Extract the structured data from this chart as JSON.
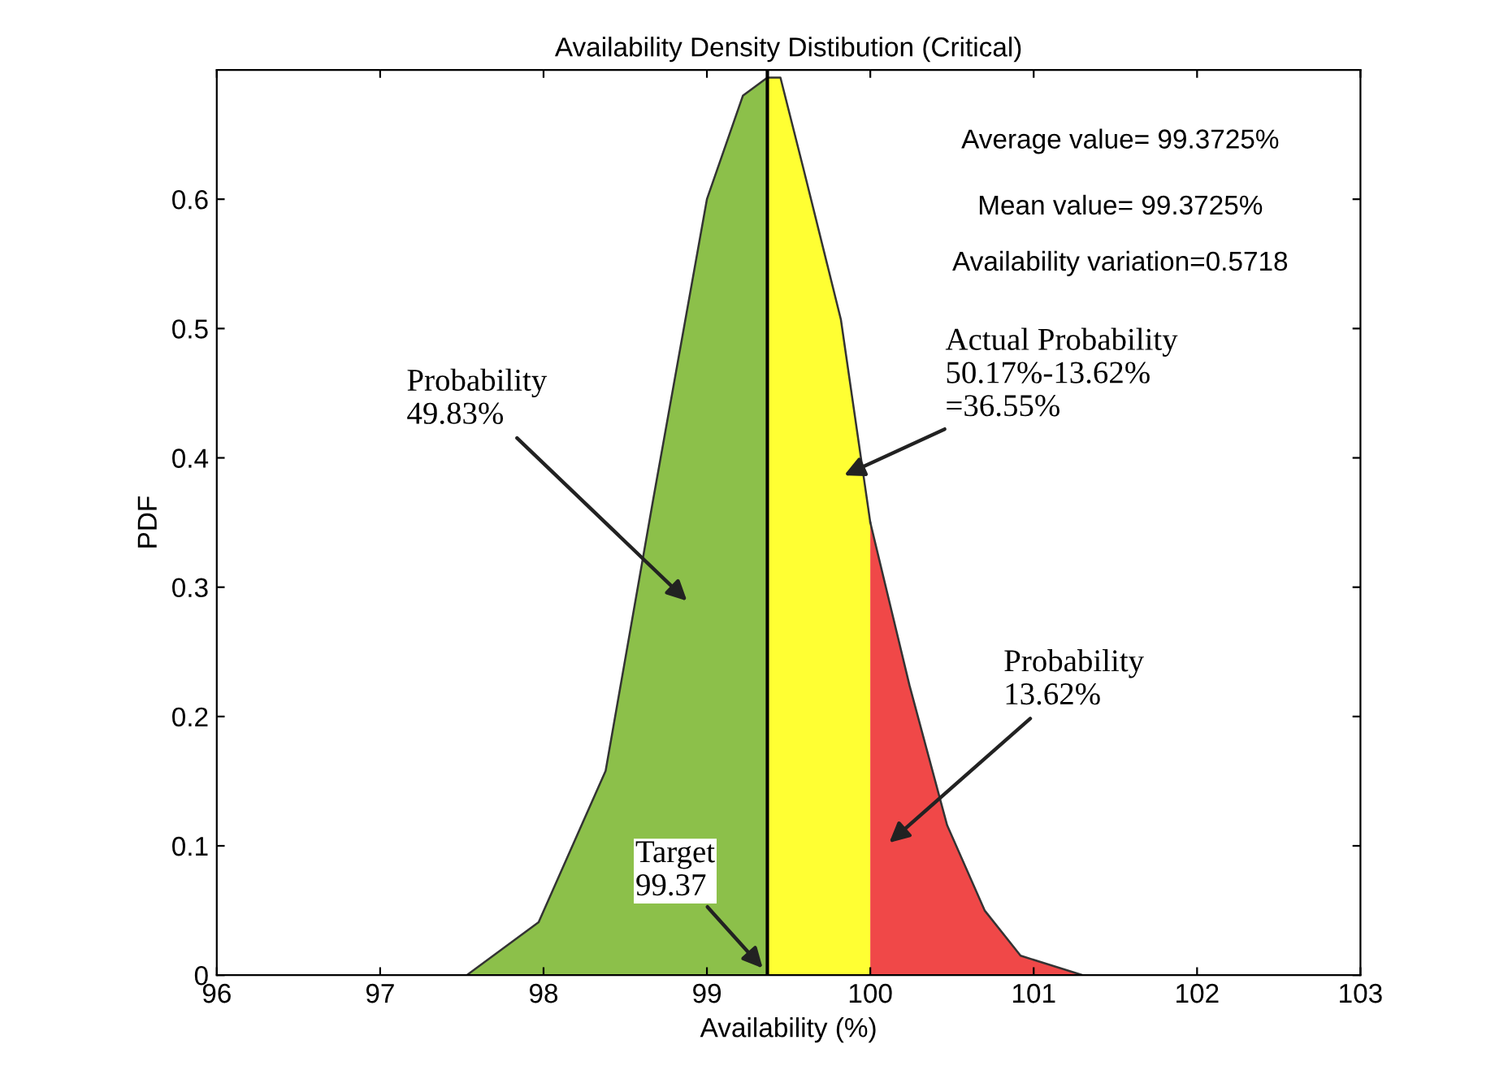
{
  "chart_data": {
    "type": "area",
    "title": "Availability Density Distibution (Critical)",
    "xlabel": "Availability (%)",
    "ylabel": "PDF",
    "series": [
      {
        "color": "#8cc04a",
        "x": [
          96,
          97.3,
          97.53,
          97.97,
          98.38,
          98.67,
          99.0,
          99.22,
          99.37
        ],
        "values": [
          0,
          0,
          0,
          0.041,
          0.158,
          0.367,
          0.6,
          0.68,
          0.694
        ]
      },
      {
        "color": "#ffff33",
        "x": [
          99.37,
          99.45,
          99.59,
          99.82,
          100.0
        ],
        "values": [
          0.694,
          0.694,
          0.624,
          0.507,
          0.35
        ]
      },
      {
        "color": "#f04848",
        "x": [
          100.0,
          100.24,
          100.47,
          100.7,
          100.92,
          101.3,
          103
        ],
        "values": [
          0.35,
          0.224,
          0.116,
          0.05,
          0.015,
          0,
          0
        ]
      }
    ],
    "xlim": [
      96,
      103
    ],
    "xticks": [
      96,
      97,
      98,
      99,
      100,
      101,
      102,
      103
    ],
    "ylim": [
      0,
      0.7
    ],
    "yticks": [
      0,
      0.1,
      0.2,
      0.3,
      0.4,
      0.5,
      0.6
    ],
    "ref_lines": [
      {
        "axis": "x",
        "value": 99.37,
        "color": "#000000"
      }
    ],
    "annotations": [
      "Average value= 99.3725%",
      "Mean value= 99.3725%",
      "Availability variation=0.5718",
      "Probability\n49.83%",
      "Actual Probability\n50.17%-13.62%\n=36.55%",
      "Probability\n13.62%",
      "Target\n99.37"
    ],
    "grid": false,
    "legend": false
  }
}
